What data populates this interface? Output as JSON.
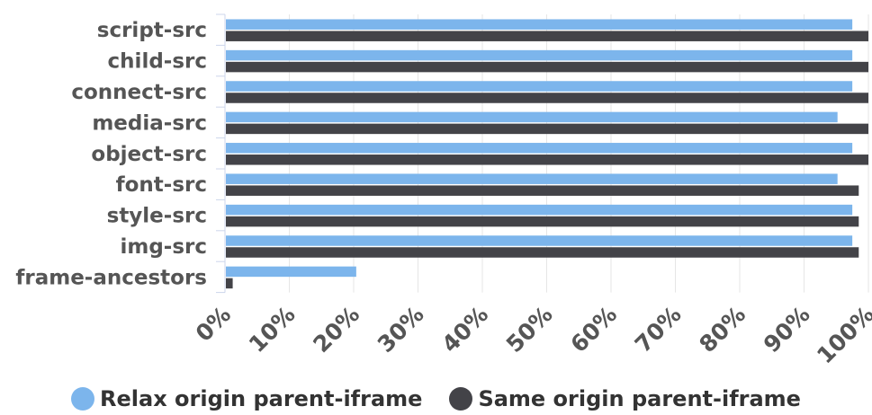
{
  "chart_data": {
    "type": "bar",
    "orientation": "horizontal",
    "categories": [
      "script-src",
      "child-src",
      "connect-src",
      "media-src",
      "object-src",
      "font-src",
      "style-src",
      "img-src",
      "frame-ancestors"
    ],
    "series": [
      {
        "name": "Relax origin parent-iframe",
        "color": "#7cb5ec",
        "values": [
          97.5,
          97.5,
          97.5,
          95.2,
          97.5,
          95.2,
          97.5,
          97.5,
          20.4
        ]
      },
      {
        "name": "Same origin parent-iframe",
        "color": "#434348",
        "values": [
          100,
          100,
          100,
          100,
          100,
          98.5,
          98.5,
          98.5,
          1.2
        ]
      }
    ],
    "xlim": [
      0,
      100
    ],
    "xticks": [
      "0%",
      "10%",
      "20%",
      "30%",
      "40%",
      "50%",
      "60%",
      "70%",
      "80%",
      "90%",
      "100%"
    ],
    "grid": true,
    "legend_position": "bottom"
  }
}
